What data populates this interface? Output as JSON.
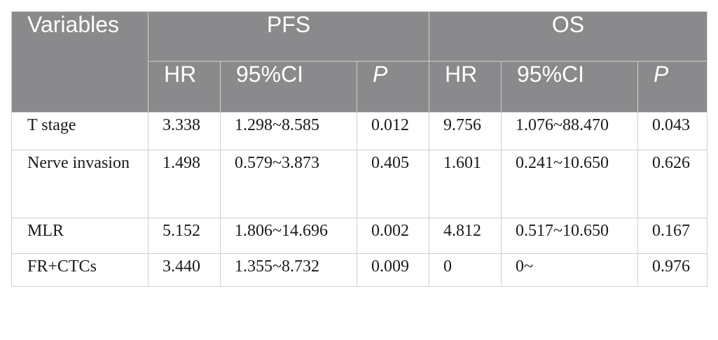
{
  "table": {
    "header": {
      "variables": "Variables",
      "pfs": "PFS",
      "os": "OS",
      "hr": "HR",
      "ci": "95%CI",
      "p": "P"
    },
    "rows": [
      {
        "variable": "T stage",
        "pfs_hr": "3.338",
        "pfs_ci": "1.298~8.585",
        "pfs_p": "0.012",
        "os_hr": "9.756",
        "os_ci": "1.076~88.470",
        "os_p": "0.043"
      },
      {
        "variable": "Nerve invasion",
        "pfs_hr": "1.498",
        "pfs_ci": "0.579~3.873",
        "pfs_p": "0.405",
        "os_hr": "1.601",
        "os_ci": "0.241~10.650",
        "os_p": "0.626"
      },
      {
        "variable": "MLR",
        "pfs_hr": "5.152",
        "pfs_ci": "1.806~14.696",
        "pfs_p": "0.002",
        "os_hr": "4.812",
        "os_ci": "0.517~10.650",
        "os_p": "0.167"
      },
      {
        "variable": "FR+CTCs",
        "pfs_hr": "3.440",
        "pfs_ci": "1.355~8.732",
        "pfs_p": "0.009",
        "os_hr": "0",
        "os_ci": "0~",
        "os_p": "0.976"
      }
    ]
  }
}
